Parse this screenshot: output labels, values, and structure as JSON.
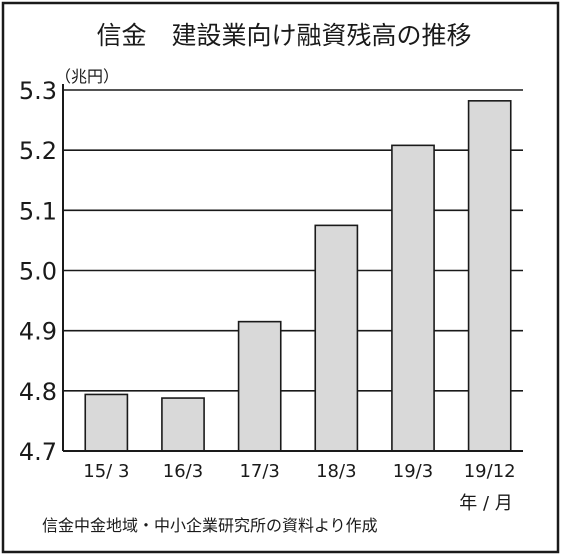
{
  "chart_data": {
    "type": "bar",
    "title": "信金　建設業向け融資残高の推移",
    "unit_label": "（兆円）",
    "x_unit_label": "年 / 月",
    "source_note": "信金中金地域・中小企業研究所の資料より作成",
    "categories": [
      "15/ 3",
      "16/3",
      "17/3",
      "18/3",
      "19/3",
      "19/12"
    ],
    "values": [
      4.794,
      4.788,
      4.915,
      5.075,
      5.208,
      5.282
    ],
    "ylim": [
      4.7,
      5.3
    ],
    "yticks": [
      "4.7",
      "4.8",
      "4.9",
      "5.0",
      "5.1",
      "5.2",
      "5.3"
    ],
    "grid": true,
    "bar_color": "#d9d9d9",
    "bar_stroke": "#1a1a1a"
  }
}
